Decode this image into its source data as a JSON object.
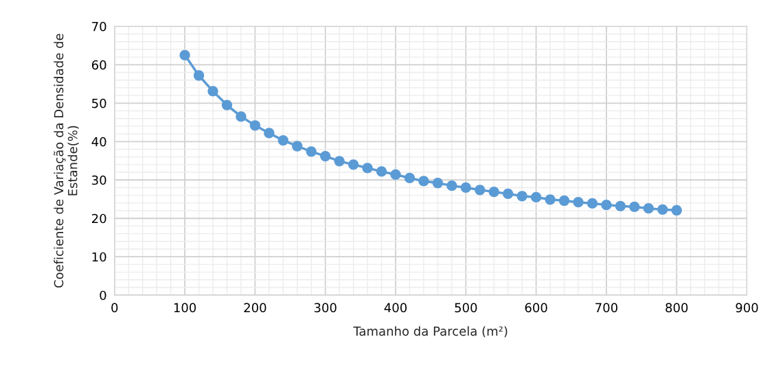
{
  "chart_data": {
    "type": "line",
    "xlabel": "Tamanho da Parcela (m²)",
    "ylabel": "Coeficiente de Variação da Densidade de Estande(%)",
    "x": [
      100,
      120,
      140,
      160,
      180,
      200,
      220,
      240,
      260,
      280,
      300,
      320,
      340,
      360,
      380,
      400,
      420,
      440,
      460,
      480,
      500,
      520,
      540,
      560,
      580,
      600,
      620,
      640,
      660,
      680,
      700,
      720,
      740,
      760,
      780,
      800
    ],
    "series": [
      {
        "color": "#5b9bd5",
        "values": [
          62.5,
          57.2,
          53.1,
          49.5,
          46.5,
          44.2,
          42.2,
          40.3,
          38.8,
          37.4,
          36.2,
          34.9,
          34.0,
          33.1,
          32.2,
          31.4,
          30.5,
          29.7,
          29.2,
          28.5,
          28.0,
          27.4,
          26.9,
          26.4,
          25.8,
          25.5,
          24.9,
          24.6,
          24.2,
          23.9,
          23.5,
          23.2,
          23.0,
          22.6,
          22.3,
          22.1
        ]
      }
    ],
    "xlim": [
      0,
      900
    ],
    "xticks": [
      0,
      100,
      200,
      300,
      400,
      500,
      600,
      700,
      800,
      900
    ],
    "ylim": [
      0,
      70
    ],
    "yticks": [
      0,
      10,
      20,
      30,
      40,
      50,
      60,
      70
    ],
    "grid": true,
    "marker": "circle",
    "line_style": "solid"
  }
}
